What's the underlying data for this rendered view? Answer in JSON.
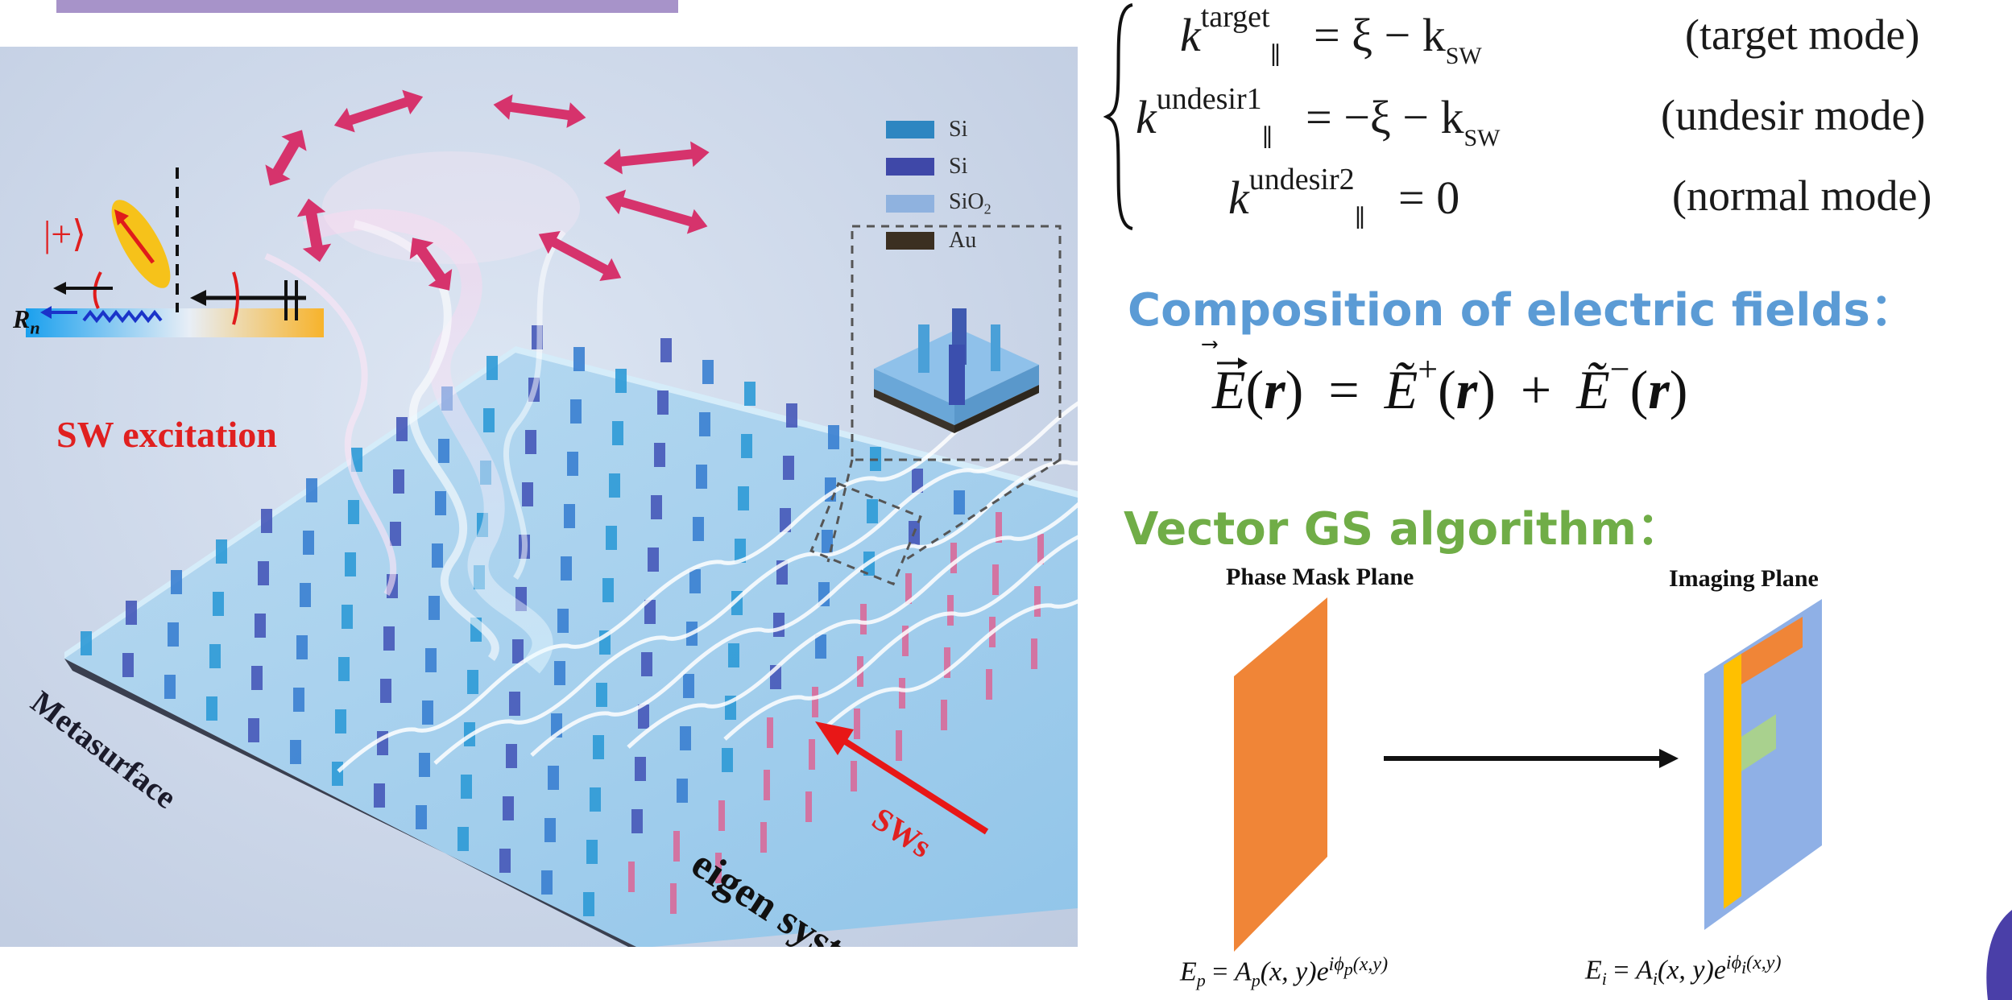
{
  "illustration": {
    "legend": [
      {
        "label": "Si",
        "color": "#2e86c1"
      },
      {
        "label": "Si",
        "color": "#3f48a8"
      },
      {
        "label": "SiO",
        "sub": "2",
        "color": "#8fb2df"
      },
      {
        "label": "Au",
        "color": "#3b2f21"
      }
    ],
    "ket_label": "|+⟩",
    "rn_label": "R",
    "rn_sub": "n",
    "sw_excitation": "SW excitation",
    "metasurface": "Metasurface",
    "sws": "SWs",
    "eigen_system": "eigen system"
  },
  "equations": {
    "row1": {
      "k": "k",
      "sup": "target",
      "rhs": "= ξ − k",
      "sub2": "SW",
      "mode": "(target mode)"
    },
    "row2": {
      "k": "k",
      "sup": "undesir1",
      "rhs": "= −ξ − k",
      "sub2": "SW",
      "mode": "(undesir  mode)"
    },
    "row3": {
      "k": "k",
      "sup": "undesir2",
      "rhs": "= 0",
      "mode": "(normal mode)"
    },
    "par_sub": "∥"
  },
  "composition": {
    "heading": "Composition of electric fields：",
    "lhs": "E",
    "r": "r",
    "eq": "=",
    "term1": "Ẽ",
    "sup1": "+",
    "plus": "+",
    "term2": "Ẽ",
    "sup2": "−"
  },
  "gs": {
    "heading": "Vector GS algorithm：",
    "phase_plane": "Phase Mask Plane",
    "imaging_plane": "Imaging Plane",
    "ep_formula": {
      "lhs": "E",
      "lhs_sub": "p",
      "amp": "A",
      "amp_sub": "p",
      "args": "(x, y)",
      "e": "e",
      "exp": "iϕ",
      "exp_sub": "p",
      "exp_args": "(x,y)"
    },
    "ei_formula": {
      "lhs": "E",
      "lhs_sub": "i",
      "amp": "A",
      "amp_sub": "i",
      "args": "(x, y)",
      "e": "e",
      "exp": "iϕ",
      "exp_sub": "i",
      "exp_args": "(x,y)"
    },
    "colors": {
      "phase": "#f08537",
      "imaging": "#8fb0e6",
      "yellow": "#ffc000",
      "green": "#a9d18e"
    }
  }
}
